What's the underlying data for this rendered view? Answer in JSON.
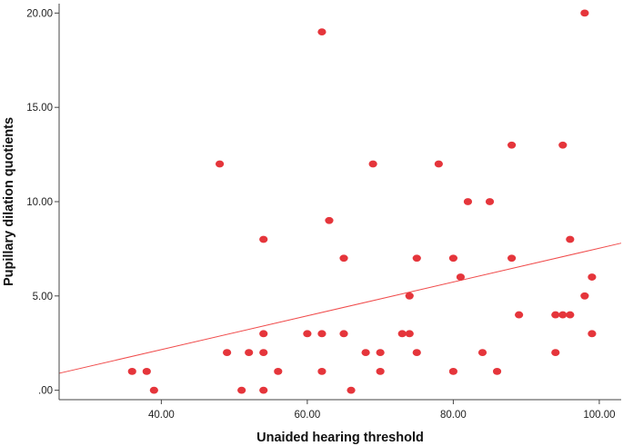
{
  "chart_data": {
    "type": "scatter",
    "title": "",
    "xlabel": "Unaided hearing threshold",
    "ylabel": "Pupillary dilation quotients",
    "xlim": [
      26,
      103
    ],
    "ylim": [
      -0.5,
      20.5
    ],
    "x_ticks": [
      40,
      60,
      80,
      100
    ],
    "x_tick_labels": [
      "40.00",
      "60.00",
      "80.00",
      "100.00"
    ],
    "y_ticks": [
      0,
      5,
      10,
      15,
      20
    ],
    "y_tick_labels": [
      ".00",
      "5.00",
      "10.00",
      "15.00",
      "20.00"
    ],
    "grid": false,
    "legend": "none",
    "point_color": "#e5353b",
    "line_color": "#f04b4b",
    "series": [
      {
        "points": [
          [
            36,
            1
          ],
          [
            38,
            1
          ],
          [
            39,
            0
          ],
          [
            48,
            12
          ],
          [
            49,
            2
          ],
          [
            51,
            0
          ],
          [
            52,
            2
          ],
          [
            54,
            8
          ],
          [
            54,
            3
          ],
          [
            54,
            2
          ],
          [
            54,
            0
          ],
          [
            56,
            1
          ],
          [
            60,
            3
          ],
          [
            62,
            19
          ],
          [
            62,
            3
          ],
          [
            62,
            1
          ],
          [
            63,
            9
          ],
          [
            65,
            7
          ],
          [
            65,
            3
          ],
          [
            66,
            0
          ],
          [
            68,
            2
          ],
          [
            69,
            12
          ],
          [
            70,
            2
          ],
          [
            70,
            1
          ],
          [
            73,
            3
          ],
          [
            74,
            3
          ],
          [
            74,
            5
          ],
          [
            75,
            7
          ],
          [
            75,
            2
          ],
          [
            78,
            12
          ],
          [
            80,
            7
          ],
          [
            80,
            1
          ],
          [
            81,
            6
          ],
          [
            82,
            10
          ],
          [
            84,
            2
          ],
          [
            85,
            10
          ],
          [
            86,
            1
          ],
          [
            88,
            13
          ],
          [
            88,
            7
          ],
          [
            89,
            4
          ],
          [
            94,
            4
          ],
          [
            94,
            2
          ],
          [
            95,
            13
          ],
          [
            95,
            4
          ],
          [
            96,
            8
          ],
          [
            96,
            4
          ],
          [
            98,
            20
          ],
          [
            98,
            5
          ],
          [
            99,
            6
          ],
          [
            99,
            3
          ]
        ]
      }
    ],
    "fit_line": {
      "x": [
        26,
        103
      ],
      "y": [
        0.9,
        7.8
      ]
    }
  }
}
